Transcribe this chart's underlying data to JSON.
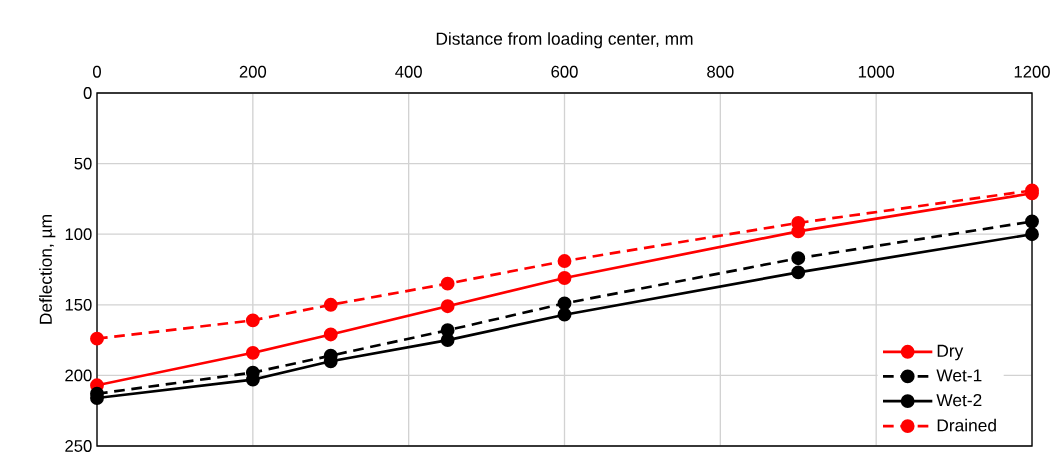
{
  "chart_data": {
    "type": "line",
    "xlabel": "Distance from loading center, mm",
    "ylabel": "Deflection, µm",
    "x": [
      0,
      200,
      300,
      450,
      600,
      900,
      1200
    ],
    "series": [
      {
        "name": "Dry",
        "color": "#ff0000",
        "line_style": "solid",
        "values": [
          207,
          184,
          171,
          151,
          131,
          98,
          71
        ]
      },
      {
        "name": "Wet-1",
        "color": "#000000",
        "line_style": "dashed",
        "values": [
          213,
          198,
          186,
          168,
          149,
          117,
          91
        ]
      },
      {
        "name": "Wet-2",
        "color": "#000000",
        "line_style": "solid",
        "values": [
          216,
          203,
          190,
          175,
          157,
          127,
          100
        ]
      },
      {
        "name": "Drained",
        "color": "#ff0000",
        "line_style": "dashed",
        "values": [
          174,
          161,
          150,
          135,
          119,
          92,
          69
        ]
      }
    ],
    "xlim": [
      0,
      1200
    ],
    "xticks": [
      0,
      200,
      400,
      600,
      800,
      1000,
      1200
    ],
    "ylim": [
      250,
      0
    ],
    "yticks": [
      0,
      50,
      100,
      150,
      200,
      250
    ],
    "grid": true,
    "legend": "bottom right",
    "marker": "circle"
  }
}
